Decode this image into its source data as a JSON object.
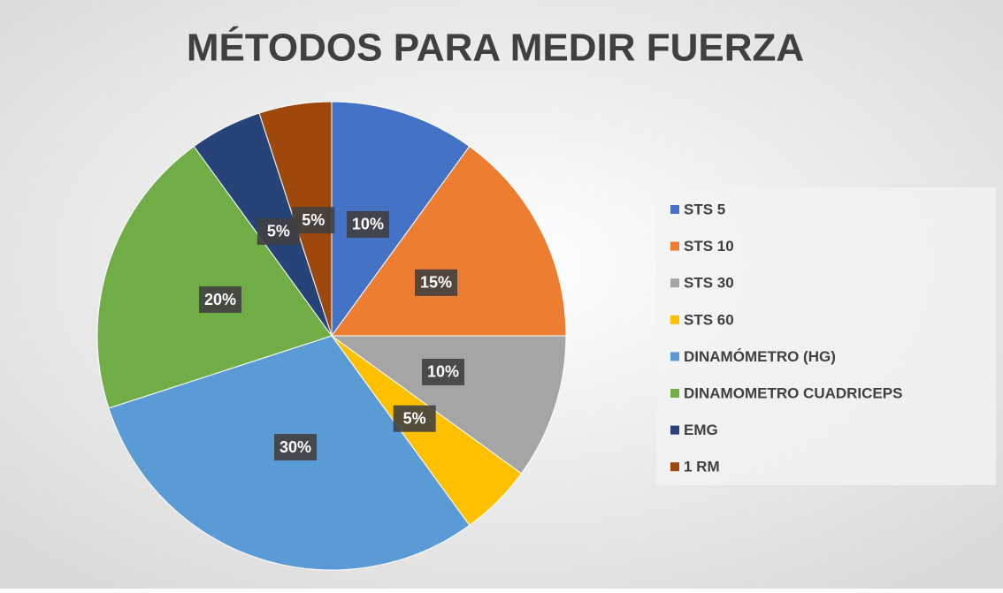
{
  "chart_data": {
    "type": "pie",
    "title": "MÉTODOS PARA MEDIR FUERZA",
    "categories": [
      "STS 5",
      "STS 10",
      "STS 30",
      "STS 60",
      "DINAMÓMETRO (HG)",
      "DINAMOMETRO CUADRICEPS",
      "EMG",
      "1 RM"
    ],
    "values": [
      10,
      15,
      10,
      5,
      30,
      20,
      5,
      5
    ],
    "value_labels": [
      "10%",
      "15%",
      "10%",
      "5%",
      "30%",
      "20%",
      "5%",
      "5%"
    ],
    "colors": [
      "#4472c4",
      "#ed7d31",
      "#a5a5a5",
      "#ffc000",
      "#5b9bd5",
      "#70ad47",
      "#264478",
      "#9e480e"
    ],
    "legend": "right"
  }
}
